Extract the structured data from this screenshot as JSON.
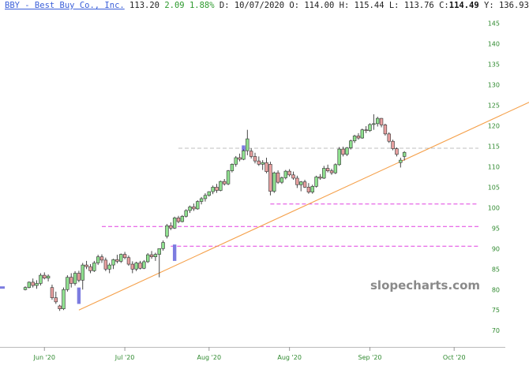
{
  "header": {
    "symbol": "BBY - Best Buy Co., Inc.",
    "last": "113.20",
    "change": "2.09",
    "change_pct": "1.88%",
    "date": "D: 10/07/2020",
    "open": "O: 114.00",
    "high": "H: 115.44",
    "low": "L: 113.76",
    "close_label": "C:",
    "close_value": "114.49",
    "year": "Y: 136.93"
  },
  "watermark": "slopecharts.com",
  "colors": {
    "up": "#8fe08f",
    "down": "#e8a0a0",
    "wick": "#333333",
    "trendline": "#f5a04a",
    "magenta": "#e040e0",
    "gray_dash": "#bfbfbf",
    "gap": "#7c7ce0",
    "axis_label": "#2f8a2f"
  },
  "chart_data": {
    "type": "candlestick",
    "ylim": [
      66,
      148
    ],
    "y_ticks": [
      70,
      75,
      80,
      85,
      90,
      95,
      100,
      105,
      110,
      115,
      120,
      125,
      130,
      135,
      140,
      145
    ],
    "x_ticks": [
      {
        "label": "Jun '20",
        "index": 5
      },
      {
        "label": "Jul '20",
        "index": 26
      },
      {
        "label": "Aug '20",
        "index": 48
      },
      {
        "label": "Aug '20",
        "index": 69
      },
      {
        "label": "Sep '20",
        "index": 90
      },
      {
        "label": "Oct '20",
        "index": 112
      }
    ],
    "horizontal_lines": [
      {
        "value": 114.5,
        "color": "gray",
        "from_index": 40
      },
      {
        "value": 100.9,
        "color": "magenta",
        "from_index": 64
      },
      {
        "value": 95.4,
        "color": "magenta",
        "from_index": 20
      },
      {
        "value": 90.6,
        "color": "magenta",
        "from_index": 38
      }
    ],
    "trendline": {
      "from": {
        "index": 14,
        "value": 75
      },
      "to": {
        "index": 138,
        "value": 128.5
      }
    },
    "gap_markers": [
      {
        "index": 14,
        "value": 78.5
      },
      {
        "index": 39,
        "value": 89
      }
    ],
    "candles": [
      [
        80,
        80.8,
        79.8,
        80.5
      ],
      [
        80.5,
        82,
        80.3,
        81.8
      ],
      [
        81.8,
        82.7,
        80.5,
        81
      ],
      [
        81,
        82.3,
        80.2,
        81.5
      ],
      [
        81.5,
        84,
        81,
        83.5
      ],
      [
        83.5,
        84.2,
        82.5,
        82.8
      ],
      [
        82.8,
        83.7,
        82,
        83.3
      ],
      [
        80.5,
        81.2,
        77.5,
        78
      ],
      [
        78,
        79.5,
        76.5,
        77
      ],
      [
        76,
        76.3,
        74.8,
        75.3
      ],
      [
        75.3,
        80.5,
        75,
        80
      ],
      [
        80,
        83.5,
        79.5,
        83
      ],
      [
        83,
        84,
        80.5,
        81.5
      ],
      [
        81.5,
        84.5,
        81,
        84
      ],
      [
        84,
        84.6,
        81.8,
        82.3
      ],
      [
        82.3,
        86.5,
        80,
        86
      ],
      [
        86,
        87,
        85,
        85.6
      ],
      [
        85.6,
        86.2,
        84,
        84.6
      ],
      [
        84.6,
        87,
        84.3,
        86.5
      ],
      [
        86.5,
        88.5,
        86,
        88
      ],
      [
        88,
        88.6,
        86.5,
        87.2
      ],
      [
        87.2,
        87.8,
        84.5,
        85
      ],
      [
        85,
        86.5,
        84,
        86
      ],
      [
        86,
        87.5,
        85,
        87.3
      ],
      [
        87.3,
        88.5,
        86.4,
        86.9
      ],
      [
        86.9,
        88.8,
        86.5,
        88.6
      ],
      [
        88.6,
        89.2,
        87.4,
        87.8
      ],
      [
        87.8,
        88.3,
        85.8,
        86.2
      ],
      [
        86.2,
        86.9,
        84,
        85
      ],
      [
        85,
        86.8,
        84.5,
        86.5
      ],
      [
        86.5,
        87,
        84.9,
        85.2
      ],
      [
        85.2,
        87.2,
        85,
        86.8
      ],
      [
        86.8,
        88.9,
        86.5,
        88.5
      ],
      [
        88.5,
        89.4,
        87.5,
        88
      ],
      [
        88,
        89,
        87,
        88.6
      ],
      [
        88.6,
        90,
        83,
        90
      ],
      [
        90,
        92,
        89.5,
        91.5
      ],
      [
        93,
        96,
        92.5,
        95.6
      ],
      [
        95.6,
        96.4,
        94.5,
        95
      ],
      [
        95,
        97.8,
        94.8,
        97.5
      ],
      [
        97.5,
        98,
        96.2,
        96.6
      ],
      [
        96.6,
        98.2,
        96.4,
        97.9
      ],
      [
        97.9,
        99.6,
        97.6,
        99.3
      ],
      [
        99.3,
        100.5,
        98.7,
        100.2
      ],
      [
        100.2,
        101,
        99.2,
        99.7
      ],
      [
        99.7,
        101.8,
        99.5,
        101.5
      ],
      [
        101.5,
        102.6,
        100.8,
        102.2
      ],
      [
        102.2,
        103.5,
        101.5,
        103
      ],
      [
        103,
        104,
        102.7,
        103.9
      ],
      [
        103.9,
        105.4,
        103.3,
        105
      ],
      [
        105,
        105.8,
        103.6,
        104.2
      ],
      [
        104.2,
        106.6,
        104,
        106.4
      ],
      [
        106.4,
        107,
        105.4,
        105.8
      ],
      [
        105.8,
        109.2,
        105.5,
        109
      ],
      [
        109,
        110.8,
        108.6,
        110.6
      ],
      [
        110.6,
        112.6,
        110,
        112.2
      ],
      [
        112.2,
        113.2,
        111.3,
        111.8
      ],
      [
        111.8,
        114.2,
        111.6,
        113.9
      ],
      [
        113.9,
        119,
        112.8,
        116.8
      ],
      [
        113.8,
        114.5,
        112,
        112.5
      ],
      [
        112.5,
        113.4,
        110.8,
        111.4
      ],
      [
        111.4,
        112.5,
        110.2,
        110.6
      ],
      [
        110.6,
        111.6,
        109.2,
        111
      ],
      [
        111,
        112.2,
        108.4,
        108.8
      ],
      [
        110.6,
        111.2,
        103,
        104
      ],
      [
        104,
        108.8,
        103.6,
        108.5
      ],
      [
        108.5,
        109.1,
        105.8,
        106.2
      ],
      [
        106.2,
        107.6,
        105.8,
        107.3
      ],
      [
        107.3,
        109.2,
        106.9,
        108.9
      ],
      [
        108.9,
        109.4,
        107.6,
        108
      ],
      [
        108,
        108.8,
        106.8,
        107.2
      ],
      [
        107.2,
        107.8,
        104.8,
        105.6
      ],
      [
        105.6,
        106.5,
        104,
        106.3
      ],
      [
        106.3,
        106.8,
        104.8,
        105
      ],
      [
        105,
        106,
        103.4,
        103.8
      ],
      [
        103.8,
        105.6,
        103.4,
        105.2
      ],
      [
        105.2,
        107.8,
        104.9,
        107.5
      ],
      [
        107.5,
        108.2,
        106.8,
        107.2
      ],
      [
        107.2,
        110.2,
        107,
        109.6
      ],
      [
        109.6,
        110.5,
        108.6,
        109
      ],
      [
        109,
        109.5,
        108,
        108.5
      ],
      [
        108.5,
        110.8,
        108.2,
        110.5
      ],
      [
        110.5,
        114.8,
        110.2,
        114.3
      ],
      [
        114.3,
        114.9,
        112.5,
        113
      ],
      [
        113,
        114.8,
        112.6,
        114.6
      ],
      [
        114.6,
        116.6,
        114.2,
        116.3
      ],
      [
        116.3,
        117.8,
        115.8,
        117.5
      ],
      [
        117.5,
        118.2,
        116.6,
        117
      ],
      [
        117,
        119.3,
        116.8,
        119
      ],
      [
        119,
        119.9,
        118.2,
        118.8
      ],
      [
        118.8,
        120.6,
        118.5,
        120.3
      ],
      [
        120.3,
        122.8,
        119,
        120.5
      ],
      [
        120.5,
        122.2,
        119.8,
        121.8
      ],
      [
        121.8,
        121.9,
        119.6,
        120.2
      ],
      [
        120.2,
        120.5,
        117.6,
        118
      ],
      [
        118,
        118.4,
        115.8,
        116.2
      ],
      [
        116.2,
        116.6,
        114,
        114.4
      ],
      [
        114.4,
        114.7,
        112.5,
        113
      ],
      [
        111,
        112.2,
        109.8,
        111.6
      ],
      [
        112.5,
        113.8,
        111.5,
        113.5
      ]
    ]
  }
}
